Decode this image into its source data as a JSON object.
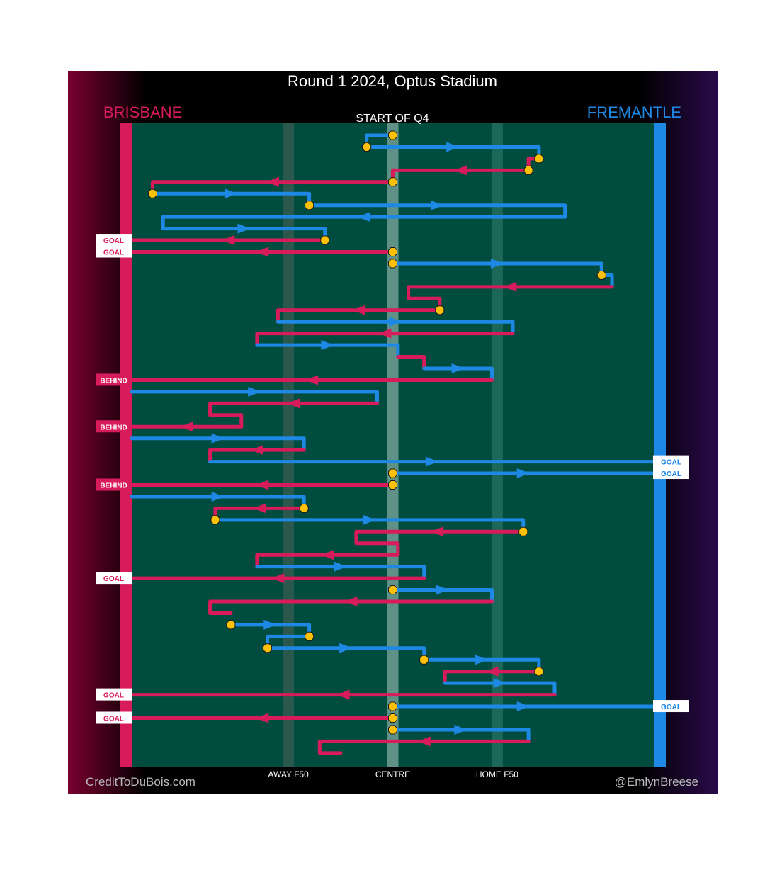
{
  "header": {
    "title": "Round 1 2024, Optus Stadium",
    "subtitle": "START OF Q4",
    "left_team": "BRISBANE",
    "right_team": "FREMANTLE"
  },
  "footer": {
    "credit_left": "CreditToDuBois.com",
    "credit_right": "@EmlynBreese"
  },
  "colors": {
    "brisbane": "#d81b5a",
    "fremantle": "#1e88e5",
    "field": "#004d40",
    "contest": "#ffc107"
  },
  "chart_data": {
    "type": "line",
    "x_ticks": [
      {
        "label": "AWAY F50",
        "x": 0.3
      },
      {
        "label": "CENTRE",
        "x": 0.5
      },
      {
        "label": "HOME F50",
        "x": 0.7
      }
    ],
    "xlim": [
      0,
      1
    ],
    "note_levels": "chains listed top to bottom; each point is [x, row]",
    "chains": [
      {
        "team": "fremantle",
        "points": [
          [
            0.49,
            0
          ],
          [
            0.45,
            0
          ],
          [
            0.45,
            1
          ],
          [
            0.78,
            1
          ],
          [
            0.78,
            2
          ]
        ]
      },
      {
        "team": "brisbane",
        "points": [
          [
            0.77,
            2
          ],
          [
            0.76,
            2
          ],
          [
            0.76,
            3
          ],
          [
            0.5,
            3
          ],
          [
            0.5,
            4
          ]
        ]
      },
      {
        "team": "brisbane",
        "points": [
          [
            0.5,
            4
          ],
          [
            0.04,
            4
          ],
          [
            0.04,
            5
          ]
        ]
      },
      {
        "team": "fremantle",
        "points": [
          [
            0.04,
            5
          ],
          [
            0.34,
            5
          ],
          [
            0.34,
            6
          ]
        ]
      },
      {
        "team": "fremantle",
        "points": [
          [
            0.34,
            6
          ],
          [
            0.83,
            6
          ],
          [
            0.83,
            7
          ],
          [
            0.06,
            7
          ],
          [
            0.06,
            8
          ],
          [
            0.37,
            8
          ],
          [
            0.37,
            9
          ]
        ]
      },
      {
        "team": "brisbane",
        "points": [
          [
            0.37,
            9
          ],
          [
            0.0,
            9
          ]
        ],
        "outcome": "GOAL"
      },
      {
        "team": "brisbane",
        "points": [
          [
            0.5,
            10
          ],
          [
            0.0,
            10
          ]
        ],
        "outcome": "GOAL"
      },
      {
        "team": "fremantle",
        "points": [
          [
            0.5,
            11
          ],
          [
            0.9,
            11
          ],
          [
            0.9,
            12
          ],
          [
            0.92,
            12
          ],
          [
            0.92,
            13
          ]
        ]
      },
      {
        "team": "brisbane",
        "points": [
          [
            0.92,
            13
          ],
          [
            0.53,
            13
          ],
          [
            0.53,
            14
          ],
          [
            0.59,
            14
          ],
          [
            0.59,
            15
          ]
        ]
      },
      {
        "team": "brisbane",
        "points": [
          [
            0.59,
            15
          ],
          [
            0.28,
            15
          ],
          [
            0.28,
            16
          ]
        ]
      },
      {
        "team": "fremantle",
        "points": [
          [
            0.28,
            16
          ],
          [
            0.73,
            16
          ],
          [
            0.73,
            17
          ]
        ]
      },
      {
        "team": "brisbane",
        "points": [
          [
            0.73,
            17
          ],
          [
            0.24,
            17
          ],
          [
            0.24,
            18
          ]
        ]
      },
      {
        "team": "fremantle",
        "points": [
          [
            0.24,
            18
          ],
          [
            0.51,
            18
          ],
          [
            0.51,
            19
          ]
        ]
      },
      {
        "team": "brisbane",
        "points": [
          [
            0.51,
            19
          ],
          [
            0.56,
            19
          ],
          [
            0.56,
            20
          ]
        ]
      },
      {
        "team": "fremantle",
        "points": [
          [
            0.56,
            20
          ],
          [
            0.69,
            20
          ],
          [
            0.69,
            21
          ]
        ]
      },
      {
        "team": "brisbane",
        "points": [
          [
            0.69,
            21
          ],
          [
            0.0,
            21
          ]
        ],
        "outcome": "BEHIND"
      },
      {
        "team": "fremantle",
        "points": [
          [
            0.0,
            22
          ],
          [
            0.47,
            22
          ],
          [
            0.47,
            23
          ]
        ]
      },
      {
        "team": "brisbane",
        "points": [
          [
            0.47,
            23
          ],
          [
            0.15,
            23
          ],
          [
            0.15,
            24
          ],
          [
            0.21,
            24
          ],
          [
            0.21,
            25
          ]
        ]
      },
      {
        "team": "brisbane",
        "points": [
          [
            0.21,
            25
          ],
          [
            0.0,
            25
          ]
        ],
        "outcome": "BEHIND"
      },
      {
        "team": "fremantle",
        "points": [
          [
            0.0,
            26
          ],
          [
            0.33,
            26
          ],
          [
            0.33,
            27
          ]
        ]
      },
      {
        "team": "brisbane",
        "points": [
          [
            0.33,
            27
          ],
          [
            0.15,
            27
          ],
          [
            0.15,
            28
          ]
        ]
      },
      {
        "team": "fremantle",
        "points": [
          [
            0.15,
            28
          ],
          [
            1.0,
            28
          ]
        ],
        "outcome": "GOAL"
      },
      {
        "team": "fremantle",
        "points": [
          [
            0.5,
            29
          ],
          [
            1.0,
            29
          ]
        ],
        "outcome": "GOAL"
      },
      {
        "team": "brisbane",
        "points": [
          [
            0.5,
            30
          ],
          [
            0.0,
            30
          ]
        ],
        "outcome": "BEHIND"
      },
      {
        "team": "fremantle",
        "points": [
          [
            0.0,
            31
          ],
          [
            0.33,
            31
          ],
          [
            0.33,
            32
          ]
        ]
      },
      {
        "team": "brisbane",
        "points": [
          [
            0.33,
            32
          ],
          [
            0.16,
            32
          ],
          [
            0.16,
            33
          ]
        ]
      },
      {
        "team": "fremantle",
        "points": [
          [
            0.16,
            33
          ],
          [
            0.75,
            33
          ],
          [
            0.75,
            34
          ]
        ]
      },
      {
        "team": "brisbane",
        "points": [
          [
            0.74,
            34
          ],
          [
            0.43,
            34
          ],
          [
            0.43,
            35
          ],
          [
            0.51,
            35
          ],
          [
            0.51,
            36
          ]
        ]
      },
      {
        "team": "brisbane",
        "points": [
          [
            0.51,
            36
          ],
          [
            0.24,
            36
          ],
          [
            0.24,
            37
          ]
        ]
      },
      {
        "team": "fremantle",
        "points": [
          [
            0.24,
            37
          ],
          [
            0.56,
            37
          ],
          [
            0.56,
            38
          ]
        ]
      },
      {
        "team": "brisbane",
        "points": [
          [
            0.56,
            38
          ],
          [
            0.0,
            38
          ]
        ],
        "outcome": "GOAL"
      },
      {
        "team": "fremantle",
        "points": [
          [
            0.5,
            39
          ],
          [
            0.69,
            39
          ],
          [
            0.69,
            40
          ]
        ]
      },
      {
        "team": "brisbane",
        "points": [
          [
            0.69,
            40
          ],
          [
            0.15,
            40
          ],
          [
            0.15,
            41
          ],
          [
            0.19,
            41
          ]
        ]
      },
      {
        "team": "fremantle",
        "points": [
          [
            0.19,
            42
          ],
          [
            0.34,
            42
          ],
          [
            0.34,
            43
          ]
        ]
      },
      {
        "team": "fremantle",
        "points": [
          [
            0.34,
            43
          ],
          [
            0.26,
            43
          ],
          [
            0.26,
            44
          ],
          [
            0.56,
            44
          ],
          [
            0.56,
            45
          ]
        ]
      },
      {
        "team": "fremantle",
        "points": [
          [
            0.56,
            45
          ],
          [
            0.78,
            45
          ],
          [
            0.78,
            46
          ]
        ]
      },
      {
        "team": "brisbane",
        "points": [
          [
            0.78,
            46
          ],
          [
            0.6,
            46
          ],
          [
            0.6,
            47
          ]
        ]
      },
      {
        "team": "fremantle",
        "points": [
          [
            0.6,
            47
          ],
          [
            0.81,
            47
          ],
          [
            0.81,
            48
          ]
        ]
      },
      {
        "team": "brisbane",
        "points": [
          [
            0.81,
            48
          ],
          [
            0.0,
            48
          ]
        ],
        "outcome": "GOAL"
      },
      {
        "team": "fremantle",
        "points": [
          [
            0.5,
            49
          ],
          [
            1.0,
            49
          ]
        ],
        "outcome": "GOAL"
      },
      {
        "team": "brisbane",
        "points": [
          [
            0.5,
            50
          ],
          [
            0.0,
            50
          ]
        ],
        "outcome": "GOAL"
      },
      {
        "team": "fremantle",
        "points": [
          [
            0.5,
            51
          ],
          [
            0.76,
            51
          ],
          [
            0.76,
            52
          ]
        ]
      },
      {
        "team": "brisbane",
        "points": [
          [
            0.76,
            52
          ],
          [
            0.36,
            52
          ],
          [
            0.36,
            53
          ],
          [
            0.4,
            53
          ]
        ]
      }
    ],
    "contests": [
      [
        0.5,
        0
      ],
      [
        0.45,
        1
      ],
      [
        0.78,
        2
      ],
      [
        0.76,
        3
      ],
      [
        0.5,
        4
      ],
      [
        0.04,
        5
      ],
      [
        0.34,
        6
      ],
      [
        0.37,
        9
      ],
      [
        0.5,
        10
      ],
      [
        0.5,
        11
      ],
      [
        0.9,
        12
      ],
      [
        0.59,
        15
      ],
      [
        0.5,
        29
      ],
      [
        0.5,
        30
      ],
      [
        0.33,
        32
      ],
      [
        0.16,
        33
      ],
      [
        0.75,
        34
      ],
      [
        0.5,
        39
      ],
      [
        0.19,
        42
      ],
      [
        0.34,
        43
      ],
      [
        0.26,
        44
      ],
      [
        0.56,
        45
      ],
      [
        0.78,
        46
      ],
      [
        0.5,
        49
      ],
      [
        0.5,
        50
      ],
      [
        0.5,
        51
      ]
    ]
  }
}
